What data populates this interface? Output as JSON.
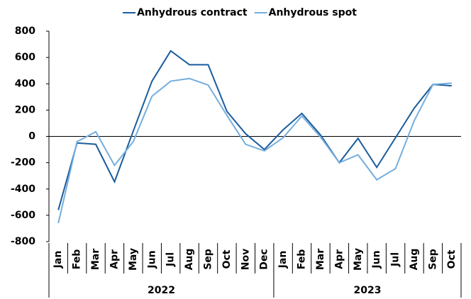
{
  "chart_data": {
    "type": "line",
    "category_groups": [
      {
        "label": "2022",
        "categories": [
          "Jan",
          "Feb",
          "Mar",
          "Apr",
          "May",
          "Jun",
          "Jul",
          "Aug",
          "Sep",
          "Oct",
          "Nov",
          "Dec"
        ]
      },
      {
        "label": "2023",
        "categories": [
          "Jan",
          "Feb",
          "Mar",
          "Apr",
          "May",
          "Jun",
          "Jul",
          "Aug",
          "Sep",
          "Oct"
        ]
      }
    ],
    "series": [
      {
        "name": "Anhydrous contract",
        "color": "#1a5c9c",
        "values": [
          -560,
          -50,
          -60,
          -345,
          40,
          420,
          650,
          545,
          545,
          190,
          20,
          -100,
          50,
          175,
          10,
          -200,
          -15,
          -235,
          -10,
          215,
          395,
          385
        ]
      },
      {
        "name": "Anhydrous spot",
        "color": "#74aedd",
        "values": [
          -660,
          -40,
          35,
          -220,
          -40,
          305,
          420,
          440,
          390,
          160,
          -60,
          -110,
          -10,
          155,
          -5,
          -200,
          -140,
          -330,
          -245,
          120,
          395,
          405
        ]
      }
    ],
    "ylim": [
      -800,
      800
    ],
    "yticks": [
      -800,
      -600,
      -400,
      -200,
      0,
      200,
      400,
      600,
      800
    ],
    "legend": "top"
  }
}
